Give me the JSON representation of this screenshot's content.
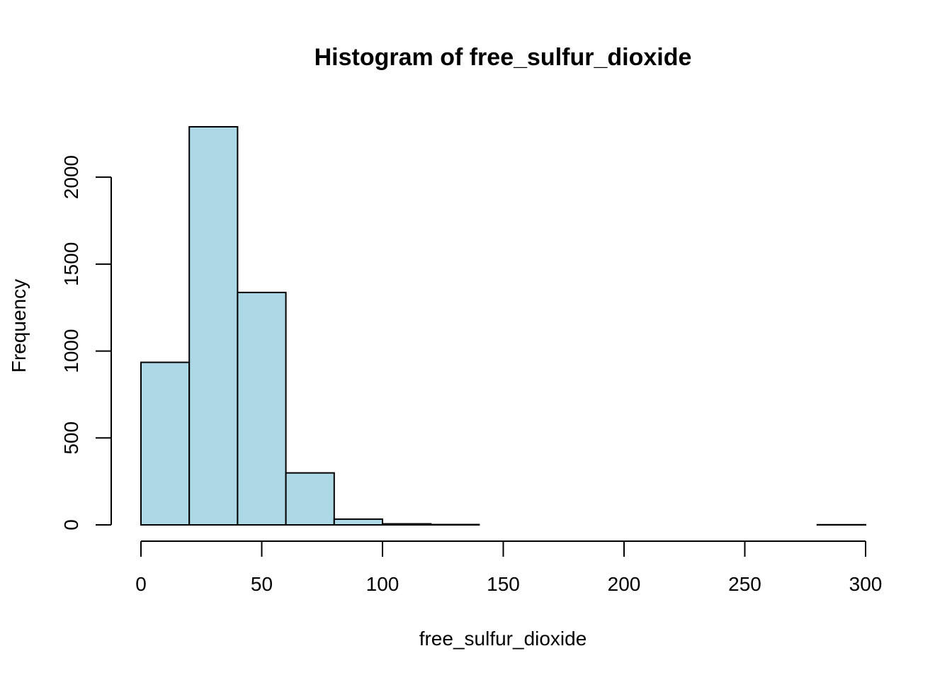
{
  "chart_data": {
    "type": "bar",
    "title": "Histogram of free_sulfur_dioxide",
    "xlabel": "free_sulfur_dioxide",
    "ylabel": "Frequency",
    "bin_edges": [
      0,
      20,
      40,
      60,
      80,
      100,
      120,
      140,
      160,
      180,
      200,
      220,
      240,
      260,
      280,
      300
    ],
    "values": [
      935,
      2290,
      1337,
      299,
      33,
      6,
      2,
      0,
      0,
      0,
      0,
      0,
      0,
      0,
      1
    ],
    "xlim": [
      0,
      300
    ],
    "ylim": [
      0,
      2290
    ],
    "x_ticks": [
      "0",
      "50",
      "100",
      "150",
      "200",
      "250",
      "300"
    ],
    "y_ticks": [
      "0",
      "500",
      "1000",
      "1500",
      "2000"
    ],
    "bar_color": "#add8e6",
    "edge_color": "#000000",
    "grid": false
  }
}
